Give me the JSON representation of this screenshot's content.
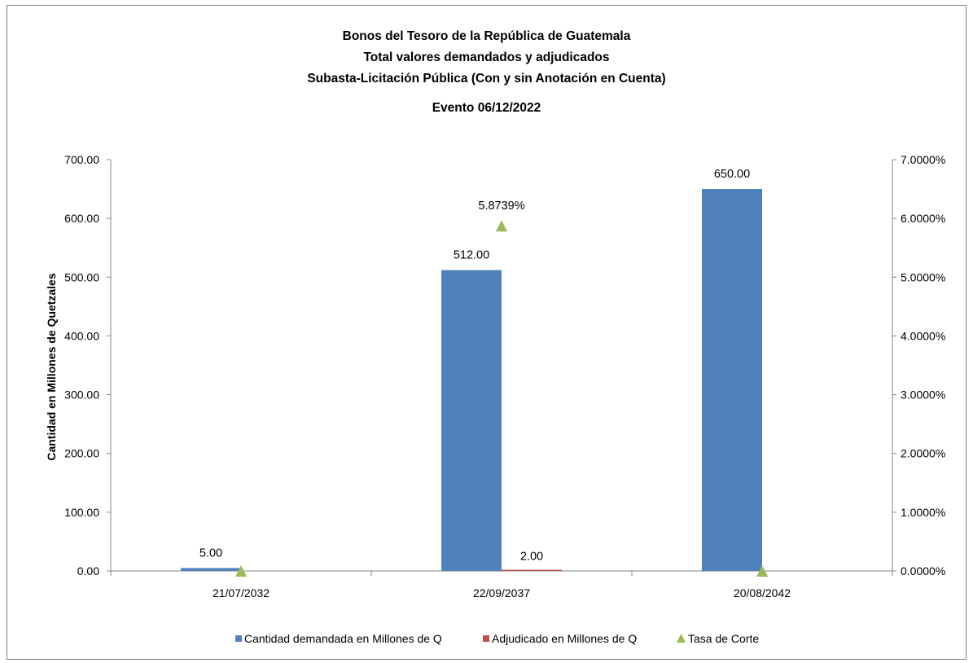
{
  "chart_data": {
    "type": "bar",
    "title_lines": [
      "Bonos del Tesoro de la República de Guatemala",
      "Total valores demandados y adjudicados",
      "Subasta-Licitación Pública (Con y sin Anotación en Cuenta)",
      "Evento 06/12/2022"
    ],
    "xlabel": "",
    "ylabel": "Cantidad en Millones de Quetzales",
    "categories": [
      "21/07/2032",
      "22/09/2037",
      "20/08/2042"
    ],
    "ylim": [
      0,
      700
    ],
    "y2lim": [
      0,
      0.07
    ],
    "y_ticks": [
      "0.00",
      "100.00",
      "200.00",
      "300.00",
      "400.00",
      "500.00",
      "600.00",
      "700.00"
    ],
    "y2_ticks": [
      "0.0000%",
      "1.0000%",
      "2.0000%",
      "3.0000%",
      "4.0000%",
      "5.0000%",
      "6.0000%",
      "7.0000%"
    ],
    "grid": false,
    "legend_position": "bottom",
    "series": [
      {
        "name": "Cantidad demandada en Millones de Q",
        "kind": "bar",
        "axis": "left",
        "color": "#4f81bd",
        "values": [
          5,
          512,
          650
        ],
        "labels": [
          "5.00",
          "512.00",
          "650.00"
        ]
      },
      {
        "name": "Adjudicado en Millones de Q",
        "kind": "bar",
        "axis": "left",
        "color": "#c0504d",
        "values": [
          0,
          2,
          0
        ],
        "labels": [
          "",
          "2.00",
          ""
        ]
      },
      {
        "name": "Tasa de Corte",
        "kind": "marker",
        "marker": "triangle",
        "axis": "right",
        "color": "#9bbb59",
        "values": [
          0,
          0.058739,
          0
        ],
        "labels": [
          "",
          "5.8739%",
          ""
        ]
      }
    ]
  }
}
